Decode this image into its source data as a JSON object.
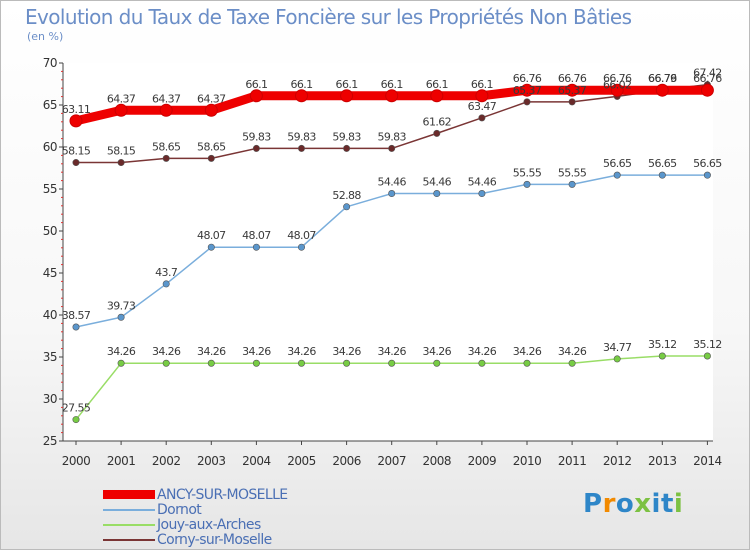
{
  "chart_data": {
    "type": "line",
    "title": "Evolution du Taux de Taxe Foncière sur les Propriétés Non Bâties",
    "subtitle": "(en %)",
    "ylim": [
      25,
      70
    ],
    "yticks": [
      25,
      30,
      35,
      40,
      45,
      50,
      55,
      60,
      65,
      70
    ],
    "x": [
      "2000",
      "2001",
      "2002",
      "2003",
      "2004",
      "2005",
      "2006",
      "2007",
      "2008",
      "2009",
      "2010",
      "2011",
      "2012",
      "2013",
      "2014"
    ],
    "series": [
      {
        "name": "Jouy-aux-Arches",
        "color": "#99dd66",
        "marker": "#77cc44",
        "values": [
          27.55,
          34.26,
          34.26,
          34.26,
          34.26,
          34.26,
          34.26,
          34.26,
          34.26,
          34.26,
          34.26,
          34.26,
          34.77,
          35.12,
          35.12
        ]
      },
      {
        "name": "Dornot",
        "color": "#7aaedc",
        "marker": "#5a96cc",
        "values": [
          38.57,
          39.73,
          43.7,
          48.07,
          48.07,
          48.07,
          52.88,
          54.46,
          54.46,
          54.46,
          55.55,
          55.55,
          56.65,
          56.65,
          56.65
        ]
      },
      {
        "name": "Corny-sur-Moselle",
        "color": "#7a3535",
        "marker": "#6a2a2a",
        "values": [
          58.15,
          58.15,
          58.65,
          58.65,
          59.83,
          59.83,
          59.83,
          59.83,
          61.62,
          63.47,
          65.37,
          65.37,
          66.02,
          66.79,
          67.42
        ]
      },
      {
        "name": "ANCY-SUR-MOSELLE",
        "color": "#ee0000",
        "marker": "#ee0000",
        "values": [
          63.11,
          64.37,
          64.37,
          64.37,
          66.1,
          66.1,
          66.1,
          66.1,
          66.1,
          66.1,
          66.76,
          66.76,
          66.76,
          66.76,
          66.76
        ]
      }
    ],
    "legend": [
      "ANCY-SUR-MOSELLE",
      "Dornot",
      "Jouy-aux-Arches",
      "Corny-sur-Moselle"
    ]
  },
  "logo": {
    "letters": [
      "P",
      "r",
      "o",
      "x",
      "i",
      "t",
      "i"
    ],
    "colors": [
      "#2e86c8",
      "#f28a00",
      "#2e86c8",
      "#7cc142",
      "#2e86c8",
      "#2e86c8",
      "#7cc142"
    ]
  }
}
